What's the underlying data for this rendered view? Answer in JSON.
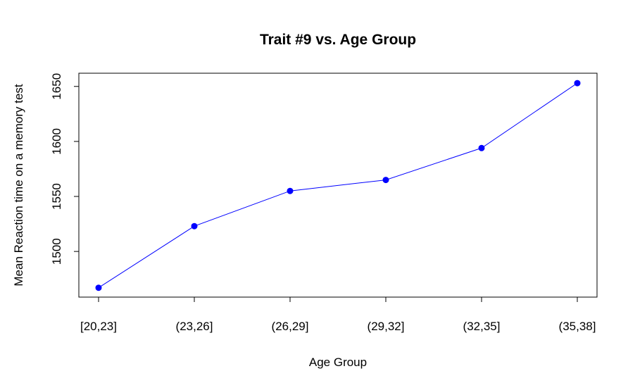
{
  "chart_data": {
    "type": "line",
    "title": "Trait #9 vs. Age Group",
    "xlabel": "Age Group",
    "ylabel": "Mean Reaction time on a memory test",
    "categories": [
      "[20,23]",
      "(23,26]",
      "(26,29]",
      "(29,32]",
      "(32,35]",
      "(35,38]"
    ],
    "values": [
      1467,
      1523,
      1555,
      1565,
      1594,
      1653
    ],
    "yticks": [
      1500,
      1550,
      1600,
      1650
    ],
    "ylim": [
      1458.5,
      1662
    ],
    "grid": false,
    "line_color": "#0000ff",
    "point_color": "#0000ff"
  }
}
